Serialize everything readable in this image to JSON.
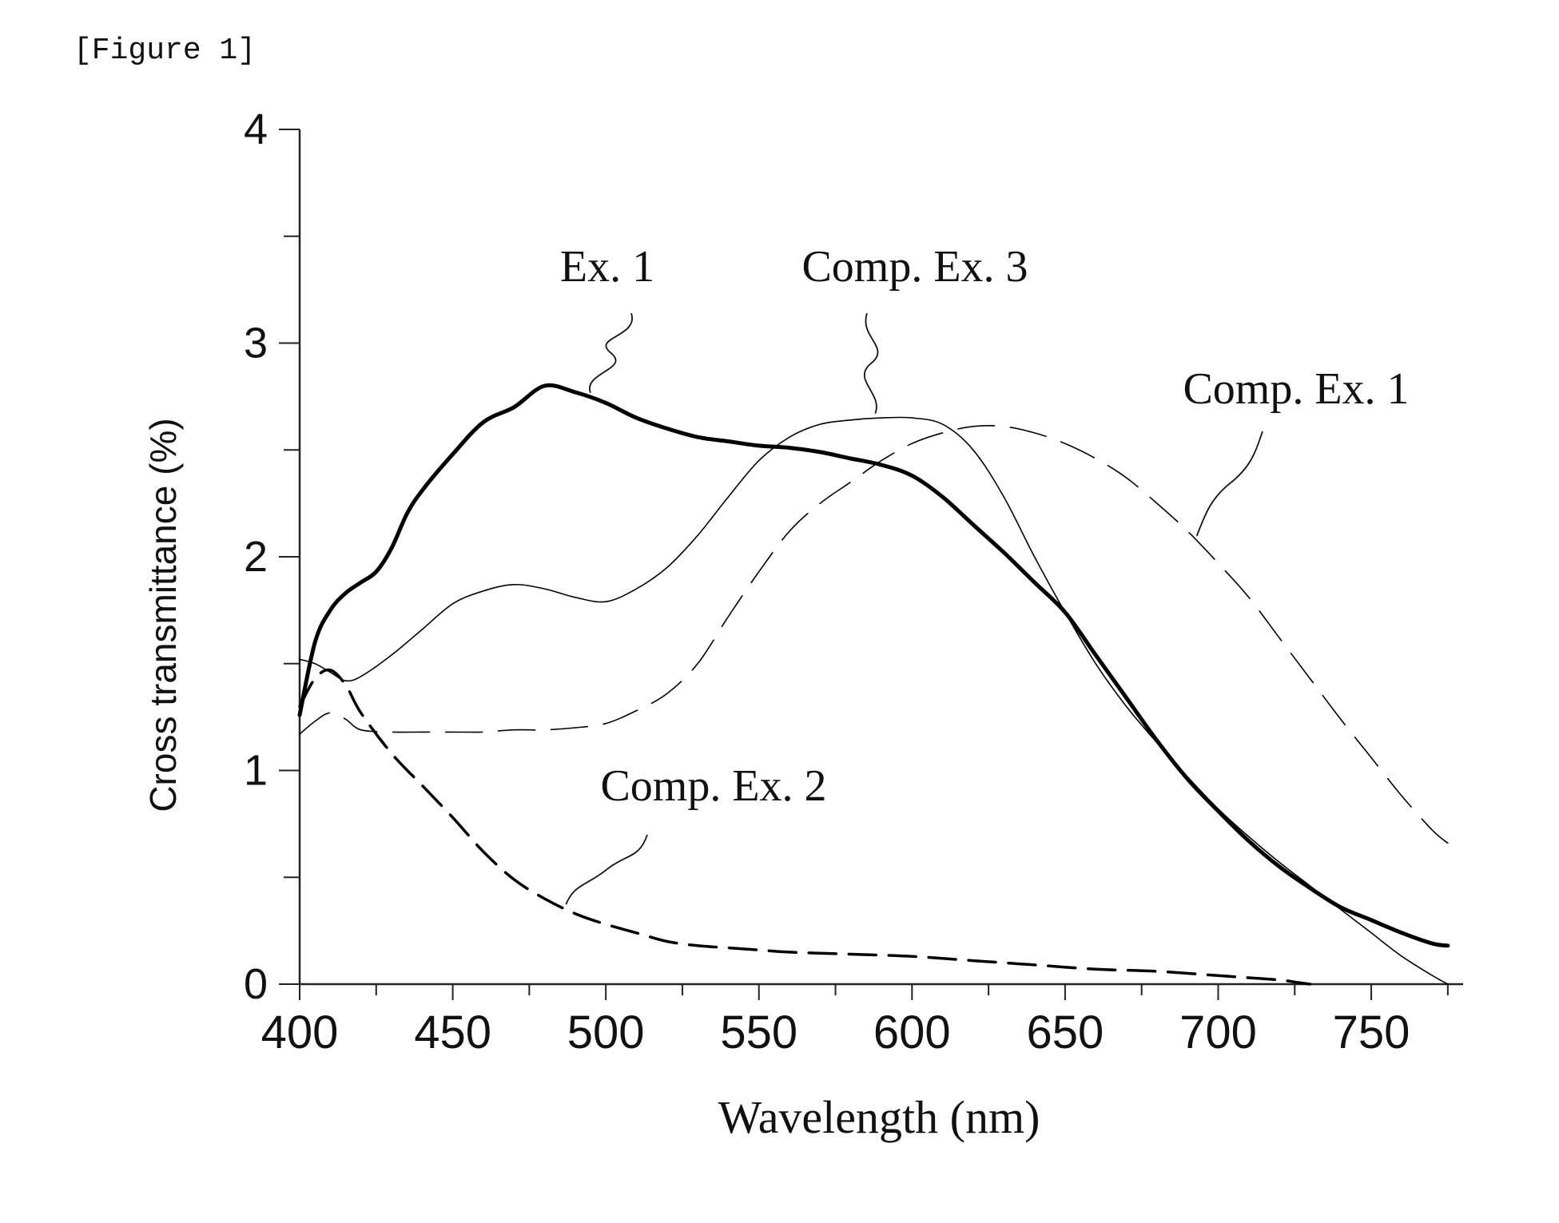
{
  "caption": "[Figure 1]",
  "chart_data": {
    "type": "line",
    "title": "",
    "xlabel": "Wavelength (nm)",
    "ylabel": "Cross transmittance (%)",
    "xlim": [
      400,
      780
    ],
    "ylim": [
      0,
      4
    ],
    "xticks": [
      400,
      450,
      500,
      550,
      600,
      650,
      700,
      750
    ],
    "yticks": [
      0,
      1,
      2,
      3,
      4
    ],
    "legend": "none (series labelled by callout leaders)",
    "grid": false,
    "series": [
      {
        "name": "Ex. 1",
        "style": "solid-thick",
        "color": "#000000",
        "x": [
          400,
          405,
          410,
          415,
          420,
          425,
          430,
          435,
          440,
          450,
          460,
          470,
          480,
          490,
          500,
          510,
          520,
          530,
          540,
          550,
          560,
          570,
          580,
          590,
          600,
          610,
          620,
          630,
          640,
          650,
          660,
          670,
          680,
          690,
          700,
          710,
          720,
          730,
          740,
          750,
          760,
          770,
          775
        ],
        "y": [
          1.26,
          1.6,
          1.75,
          1.83,
          1.88,
          1.93,
          2.04,
          2.2,
          2.31,
          2.48,
          2.63,
          2.7,
          2.8,
          2.77,
          2.72,
          2.65,
          2.6,
          2.56,
          2.54,
          2.52,
          2.51,
          2.49,
          2.46,
          2.43,
          2.38,
          2.28,
          2.15,
          2.02,
          1.88,
          1.74,
          1.54,
          1.34,
          1.14,
          0.96,
          0.81,
          0.67,
          0.55,
          0.45,
          0.36,
          0.3,
          0.24,
          0.19,
          0.18
        ]
      },
      {
        "name": "Comp. Ex. 3",
        "style": "solid-thin",
        "color": "#000000",
        "x": [
          400,
          405,
          410,
          415,
          420,
          430,
          440,
          450,
          460,
          470,
          480,
          490,
          500,
          510,
          520,
          530,
          540,
          550,
          560,
          570,
          580,
          590,
          600,
          610,
          620,
          630,
          640,
          650,
          660,
          670,
          680,
          690,
          700,
          710,
          720,
          730,
          740,
          750,
          760,
          770,
          775
        ],
        "y": [
          1.52,
          1.5,
          1.46,
          1.42,
          1.44,
          1.54,
          1.66,
          1.78,
          1.84,
          1.87,
          1.85,
          1.81,
          1.79,
          1.85,
          1.95,
          2.1,
          2.28,
          2.45,
          2.56,
          2.62,
          2.64,
          2.65,
          2.65,
          2.62,
          2.5,
          2.28,
          2.0,
          1.74,
          1.5,
          1.3,
          1.13,
          0.97,
          0.82,
          0.69,
          0.57,
          0.46,
          0.35,
          0.24,
          0.13,
          0.04,
          0.0
        ]
      },
      {
        "name": "Comp. Ex. 1",
        "style": "long-dash-thin",
        "color": "#000000",
        "x": [
          400,
          405,
          410,
          415,
          420,
          430,
          440,
          450,
          460,
          470,
          480,
          490,
          500,
          510,
          520,
          530,
          540,
          550,
          560,
          570,
          580,
          590,
          600,
          610,
          620,
          630,
          640,
          650,
          660,
          670,
          680,
          690,
          700,
          710,
          720,
          730,
          740,
          750,
          760,
          770,
          775
        ],
        "y": [
          1.17,
          1.23,
          1.27,
          1.24,
          1.19,
          1.18,
          1.18,
          1.18,
          1.18,
          1.19,
          1.19,
          1.2,
          1.22,
          1.28,
          1.36,
          1.5,
          1.72,
          1.93,
          2.12,
          2.25,
          2.35,
          2.45,
          2.53,
          2.58,
          2.61,
          2.61,
          2.58,
          2.53,
          2.46,
          2.37,
          2.25,
          2.12,
          1.97,
          1.81,
          1.62,
          1.43,
          1.24,
          1.06,
          0.88,
          0.72,
          0.66
        ]
      },
      {
        "name": "Comp. Ex. 2",
        "style": "dashed-thick",
        "color": "#000000",
        "x": [
          400,
          405,
          410,
          415,
          420,
          430,
          440,
          450,
          460,
          470,
          480,
          490,
          500,
          510,
          520,
          530,
          540,
          550,
          560,
          580,
          600,
          620,
          640,
          660,
          680,
          700,
          710,
          720,
          725,
          730
        ],
        "y": [
          1.3,
          1.43,
          1.47,
          1.4,
          1.27,
          1.08,
          0.93,
          0.78,
          0.62,
          0.49,
          0.4,
          0.33,
          0.28,
          0.24,
          0.2,
          0.18,
          0.17,
          0.16,
          0.15,
          0.14,
          0.13,
          0.11,
          0.09,
          0.07,
          0.06,
          0.04,
          0.03,
          0.02,
          0.01,
          0.0
        ]
      }
    ],
    "annotations": [
      {
        "text": "Ex. 1",
        "series": "Ex. 1",
        "at_x": 495
      },
      {
        "text": "Comp. Ex. 3",
        "series": "Comp. Ex. 3",
        "at_x": 588
      },
      {
        "text": "Comp. Ex. 1",
        "series": "Comp. Ex. 1",
        "at_x": 693
      },
      {
        "text": "Comp. Ex. 2",
        "series": "Comp. Ex. 2",
        "at_x": 487
      }
    ]
  }
}
